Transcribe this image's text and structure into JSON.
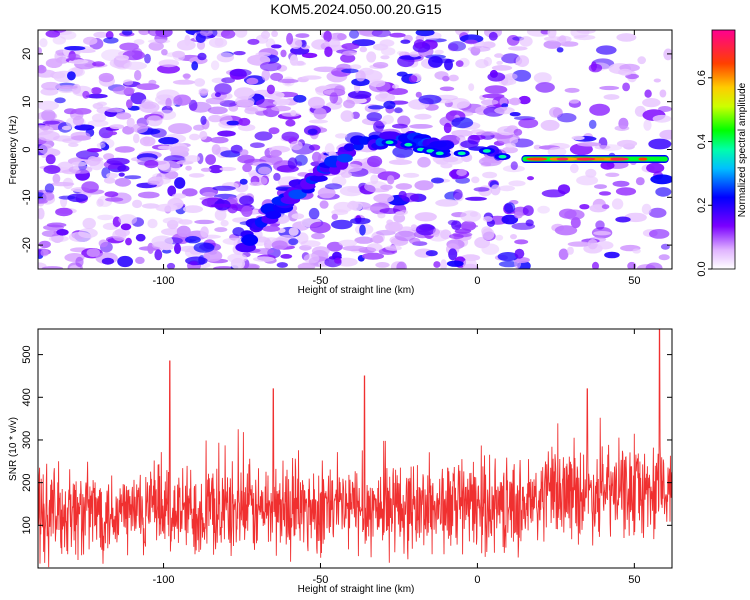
{
  "title": "KOM5.2024.050.00.20.G15",
  "chart_data": [
    {
      "type": "heatmap",
      "xlabel": "Height of straight line (km)",
      "ylabel": "Frequency (Hz)",
      "xlim": [
        -140,
        62
      ],
      "ylim": [
        -25,
        25
      ],
      "xticks": [
        -100,
        -50,
        0,
        50
      ],
      "yticks": [
        -20,
        -10,
        0,
        10,
        20
      ],
      "colorbar": {
        "label": "Normalized spectral amplitude",
        "range": [
          0,
          0.75
        ],
        "ticks": [
          0.0,
          0.2,
          0.4,
          0.6
        ],
        "colors": [
          "#ffffff",
          "#7a00ff",
          "#0000ff",
          "#00ffff",
          "#00ff00",
          "#ffff00",
          "#ff8000",
          "#ff0000",
          "#ff00aa"
        ]
      },
      "features": [
        {
          "description": "diagonal track",
          "points": [
            [
              -75,
              -20
            ],
            [
              -60,
              -10
            ],
            [
              -50,
              -5
            ],
            [
              -35,
              2
            ],
            [
              -20,
              2
            ],
            [
              -10,
              0
            ]
          ]
        },
        {
          "description": "horizontal strong band",
          "points": [
            [
              -10,
              -1
            ],
            [
              10,
              -2
            ],
            [
              15,
              -2
            ],
            [
              60,
              -2
            ]
          ],
          "peak_amplitude": 0.72
        }
      ]
    },
    {
      "type": "line",
      "xlabel": "Height of straight line (km)",
      "ylabel": "SNR (10 * v/v)",
      "xlim": [
        -140,
        62
      ],
      "ylim": [
        0,
        560
      ],
      "xticks": [
        -100,
        -50,
        0,
        50
      ],
      "yticks": [
        100,
        200,
        300,
        400,
        500
      ],
      "series_color": "#f03030",
      "peaks": [
        [
          -98,
          485
        ],
        [
          -36,
          450
        ],
        [
          -65,
          420
        ],
        [
          35,
          420
        ],
        [
          58,
          560
        ]
      ],
      "baseline_mean": 130
    }
  ]
}
